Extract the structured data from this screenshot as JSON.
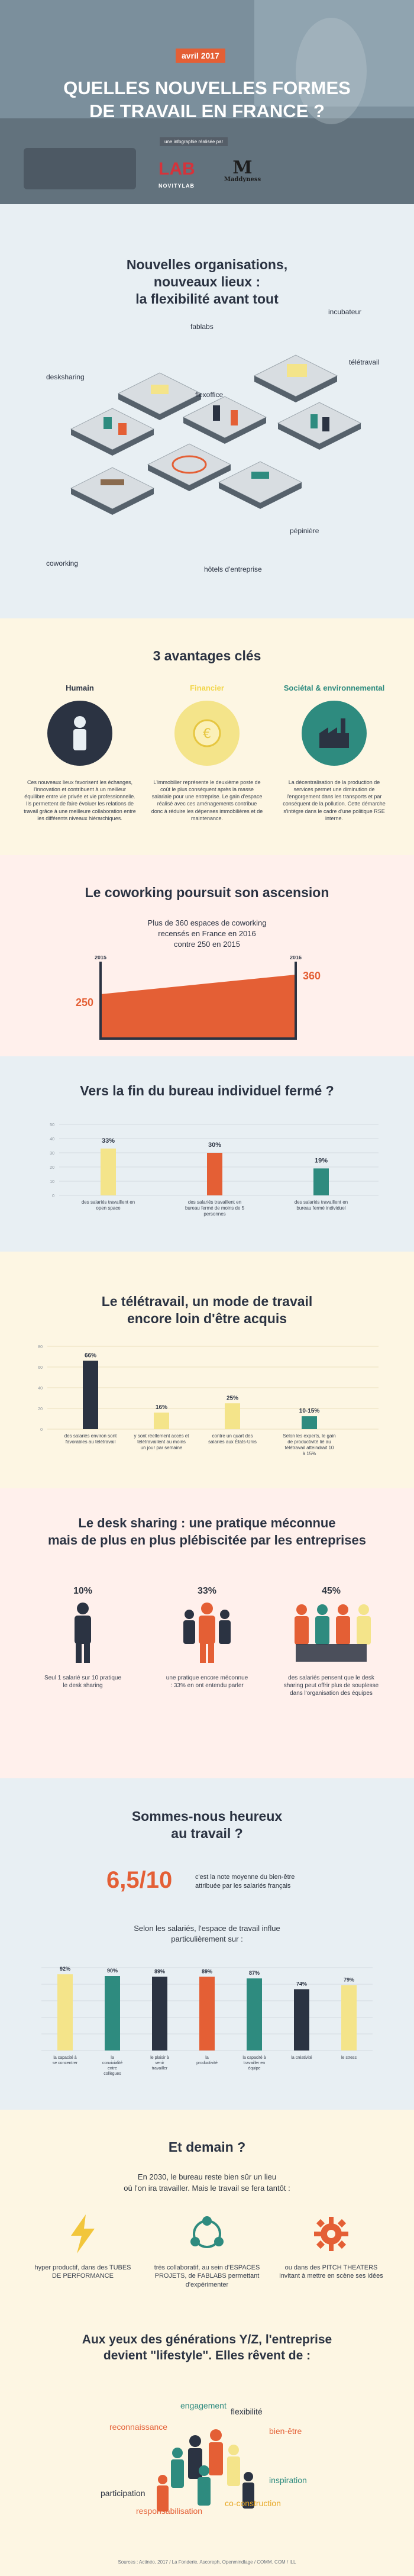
{
  "hero": {
    "date": "avril 2017",
    "title_line1": "QUELLES NOUVELLES FORMES",
    "title_line2": "DE TRAVAIL EN FRANCE ?",
    "subtitle": "une infographie réalisée par",
    "logo1_main": "LAB",
    "logo1_sub": "NOVITYLAB",
    "logo2_main": "M",
    "logo2_sub": "Maddyness"
  },
  "iso": {
    "title": [
      "Nouvelles organisations,",
      "nouveaux lieux :",
      "la flexibilité avant tout"
    ],
    "labels": {
      "incubateur": "incubateur",
      "fablabs": "fablabs",
      "teletravail": "télétravail",
      "desksharing": "desksharing",
      "flexoffice": "flexoffice",
      "pepiniere": "pépinière",
      "coworking": "coworking",
      "hotels": "hôtels d'entreprise"
    }
  },
  "advantages": {
    "title": "3 avantages clés",
    "cols": [
      {
        "head": "Humain",
        "color": "#2b3342",
        "text": "Ces nouveaux lieux favorisent les échanges, l'innovation et contribuent à un meilleur équilibre entre vie privée et vie professionnelle. Ils permettent de faire évoluer les relations de travail grâce à une meilleure collaboration entre les différents niveaux hiérarchiques."
      },
      {
        "head": "Financier",
        "color": "#f2d64b",
        "text": "L'immobilier représente le deuxième poste de coût le plus conséquent après la masse salariale pour une entreprise. Le gain d'espace réalisé avec ces aménagements contribue donc à réduire les dépenses immobilières et de maintenance."
      },
      {
        "head": "Sociétal & environnemental",
        "color": "#2e8b7f",
        "text": "La décentralisation de la production de services permet une diminution de l'engorgement dans les transports et par conséquent de la pollution. Cette démarche s'intègre dans le cadre d'une politique RSE interne."
      }
    ]
  },
  "coworking": {
    "title": "Le coworking poursuit son ascension",
    "desc": [
      "Plus de 360 espaces de coworking",
      "recensés en France en 2016",
      "contre 250 en 2015"
    ]
  },
  "chart_data": [
    {
      "type": "area",
      "title": "Le coworking poursuit son ascension",
      "categories": [
        "2015",
        "2016"
      ],
      "values": [
        250,
        360
      ]
    },
    {
      "type": "bar",
      "title": "Vers la fin du bureau individuel fermé ?",
      "categories": [
        "des salariés travaillent en open space",
        "des salariés travaillent en bureau fermé de moins de 5 personnes",
        "des salariés travaillent en bureau fermé individuel"
      ],
      "values": [
        33,
        30,
        19
      ],
      "labels": [
        "33%",
        "30%",
        "19%"
      ],
      "ylim": [
        0,
        50
      ]
    },
    {
      "type": "bar",
      "title": "Le télétravail, un mode de travail encore loin d'être acquis",
      "categories": [
        "des salariés environ sont favorables au télétravail",
        "y sont réellement accès et télétravaillent au moins un jour par semaine",
        "contre un quart des salariés aux États-Unis",
        "Selon les experts, le gain de productivité lié au télétravail atteindrait 10 à 15%"
      ],
      "values": [
        66,
        16,
        25,
        12.5
      ],
      "labels": [
        "66%",
        "16%",
        "25%",
        "10-15%"
      ],
      "y_ticks": [
        "80",
        "60",
        "40",
        "20",
        "0"
      ],
      "ylim": [
        0,
        80
      ]
    },
    {
      "type": "bar",
      "title": "Selon les salariés, l'espace de travail influe particulièrement sur :",
      "categories": [
        "la capacité à se concentrer",
        "la convivialité entre collègues",
        "le plaisir à venir travailler",
        "la productivité",
        "la capacité à travailler en équipe",
        "la créativité",
        "le stress"
      ],
      "values": [
        92,
        90,
        89,
        89,
        87,
        74,
        79
      ],
      "labels": [
        "92%",
        "90%",
        "89%",
        "89%",
        "87%",
        "74%",
        "79%"
      ],
      "colors": [
        "#f4e48a",
        "#2e8b7f",
        "#2b3342",
        "#e45f35",
        "#2e8b7f",
        "#2b3342",
        "#f4e48a"
      ],
      "ylim": [
        0,
        100
      ]
    }
  ],
  "bureau": {
    "title": "Vers la fin du bureau individuel fermé ?",
    "y_ticks": [
      "50",
      "40",
      "30",
      "20",
      "10",
      "0"
    ],
    "colors": [
      "#f4e48a",
      "#e45f35",
      "#2e8b7f"
    ]
  },
  "tele": {
    "title": [
      "Le télétravail, un mode de travail",
      "encore loin d'être acquis"
    ],
    "colors": [
      "#2b3342",
      "#f4e48a",
      "#f4e48a",
      "#2e8b7f"
    ]
  },
  "desk": {
    "title": [
      "Le desk sharing : une pratique méconnue",
      "mais de plus en plus plébiscitée par les entreprises"
    ],
    "groups": [
      {
        "pct": "10%",
        "text": "Seul 1 salarié sur 10 pratique le desk sharing"
      },
      {
        "pct": "33%",
        "text": "une pratique encore méconnue : 33% en ont entendu parler"
      },
      {
        "pct": "45%",
        "text": "des salariés pensent que le desk sharing peut offrir plus de souplesse dans l'organisation des équipes"
      }
    ]
  },
  "happy": {
    "title": [
      "Sommes-nous heureux",
      "au travail ?"
    ],
    "score": "6,5/10",
    "score_text": "c'est la note moyenne du bien-être attribuée par les salariés français",
    "sub": [
      "Selon les salariés, l'espace de travail influe",
      "particulièrement sur :"
    ]
  },
  "demain": {
    "title": "Et demain ?",
    "intro": [
      "En 2030, le bureau reste bien sûr un lieu",
      "où l'on ira travailler. Mais le travail se fera tantôt :"
    ],
    "cols": [
      {
        "text": "hyper productif, dans des TUBES DE PERFORMANCE",
        "color": "#f2c63b"
      },
      {
        "text": "très collaboratif, au sein d'ESPACES PROJETS, de FABLABS permettant d'expérimenter",
        "color": "#2e8b7f"
      },
      {
        "text": "ou dans des PITCH THEATERS invitant à mettre en scène ses idées",
        "color": "#e45f35"
      }
    ],
    "gen_title": [
      "Aux yeux des générations Y/Z, l'entreprise",
      "devient \"lifestyle\". Elles rêvent de :"
    ],
    "words": [
      {
        "text": "engagement",
        "color": "#2e8b7f"
      },
      {
        "text": "flexibilité",
        "color": "#2b3342"
      },
      {
        "text": "reconnaissance",
        "color": "#e45f35"
      },
      {
        "text": "bien-être",
        "color": "#e45f35"
      },
      {
        "text": "inspiration",
        "color": "#2e8b7f"
      },
      {
        "text": "participation",
        "color": "#2b3342"
      },
      {
        "text": "co-construction",
        "color": "#e6a520"
      },
      {
        "text": "responsabilisation",
        "color": "#e45f35"
      }
    ],
    "source": "Sources : Actinéo, 2017 / La Fonderie, Ascoreph, Openmindlage / COMM. COM / ILL"
  }
}
